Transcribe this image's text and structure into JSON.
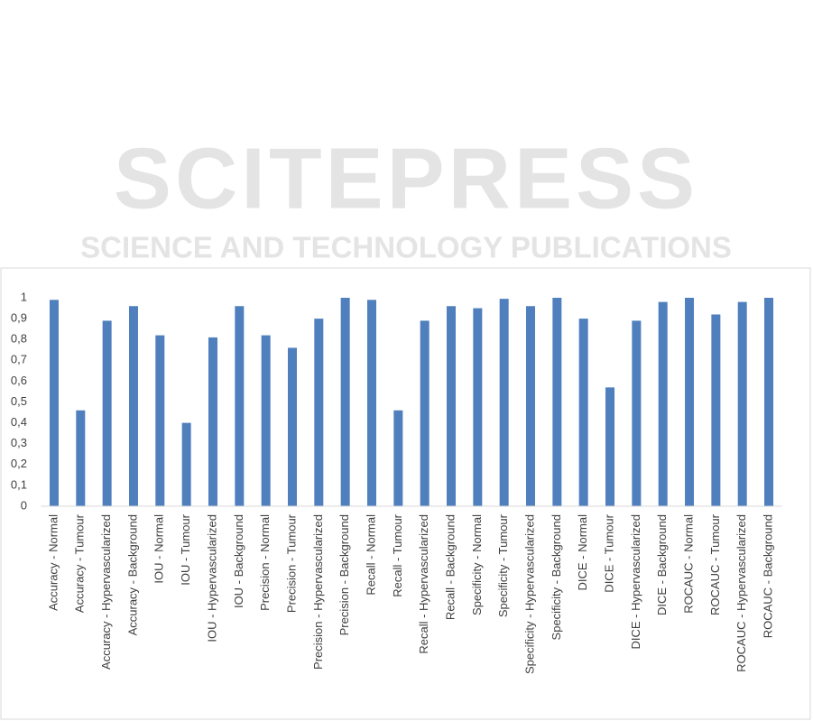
{
  "watermark": {
    "title": "SCITEPRESS",
    "subtitle": "SCIENCE AND TECHNOLOGY PUBLICATIONS"
  },
  "chart_data": {
    "type": "bar",
    "color": "#4f7fbd",
    "grid": false,
    "categories": [
      "Accuracy - Normal",
      "Accuracy - Tumour",
      "Accuracy - Hypervascularized",
      "Accuracy - Background",
      "IOU - Normal",
      "IOU - Tumour",
      "IOU - Hypervascularized",
      "IOU - Background",
      "Precision - Normal",
      "Precision - Tumour",
      "Precision - Hypervascularized",
      "Precision - Background",
      "Recall - Normal",
      "Recall - Tumour",
      "Recall - Hypervascularized",
      "Recall - Background",
      "Specificity - Normal",
      "Specificity - Tumour",
      "Specificity - Hypervascularized",
      "Specificity - Background",
      "DICE - Normal",
      "DICE - Tumour",
      "DICE - Hypervascularized",
      "DICE - Background",
      "ROCAUC - Normal",
      "ROCAUC - Tumour",
      "ROCAUC - Hypervascularized",
      "ROCAUC - Background"
    ],
    "values": [
      0.99,
      0.46,
      0.89,
      0.96,
      0.82,
      0.4,
      0.81,
      0.96,
      0.82,
      0.76,
      0.9,
      1.0,
      0.99,
      0.46,
      0.89,
      0.96,
      0.95,
      0.995,
      0.96,
      1.0,
      0.9,
      0.57,
      0.89,
      0.98,
      1.0,
      0.92,
      0.98,
      1.0
    ],
    "ylim": [
      0,
      1
    ],
    "yticks": [
      0,
      {
        "value": 0.1,
        "label": "0,1"
      },
      {
        "value": 0.2,
        "label": "0,2"
      },
      {
        "value": 0.3,
        "label": "0,3"
      },
      {
        "value": 0.4,
        "label": "0,4"
      },
      {
        "value": 0.5,
        "label": "0,5"
      },
      {
        "value": 0.6,
        "label": "0,6"
      },
      {
        "value": 0.7,
        "label": "0,7"
      },
      {
        "value": 0.8,
        "label": "0,8"
      },
      {
        "value": 0.9,
        "label": "0,9"
      },
      1
    ]
  }
}
